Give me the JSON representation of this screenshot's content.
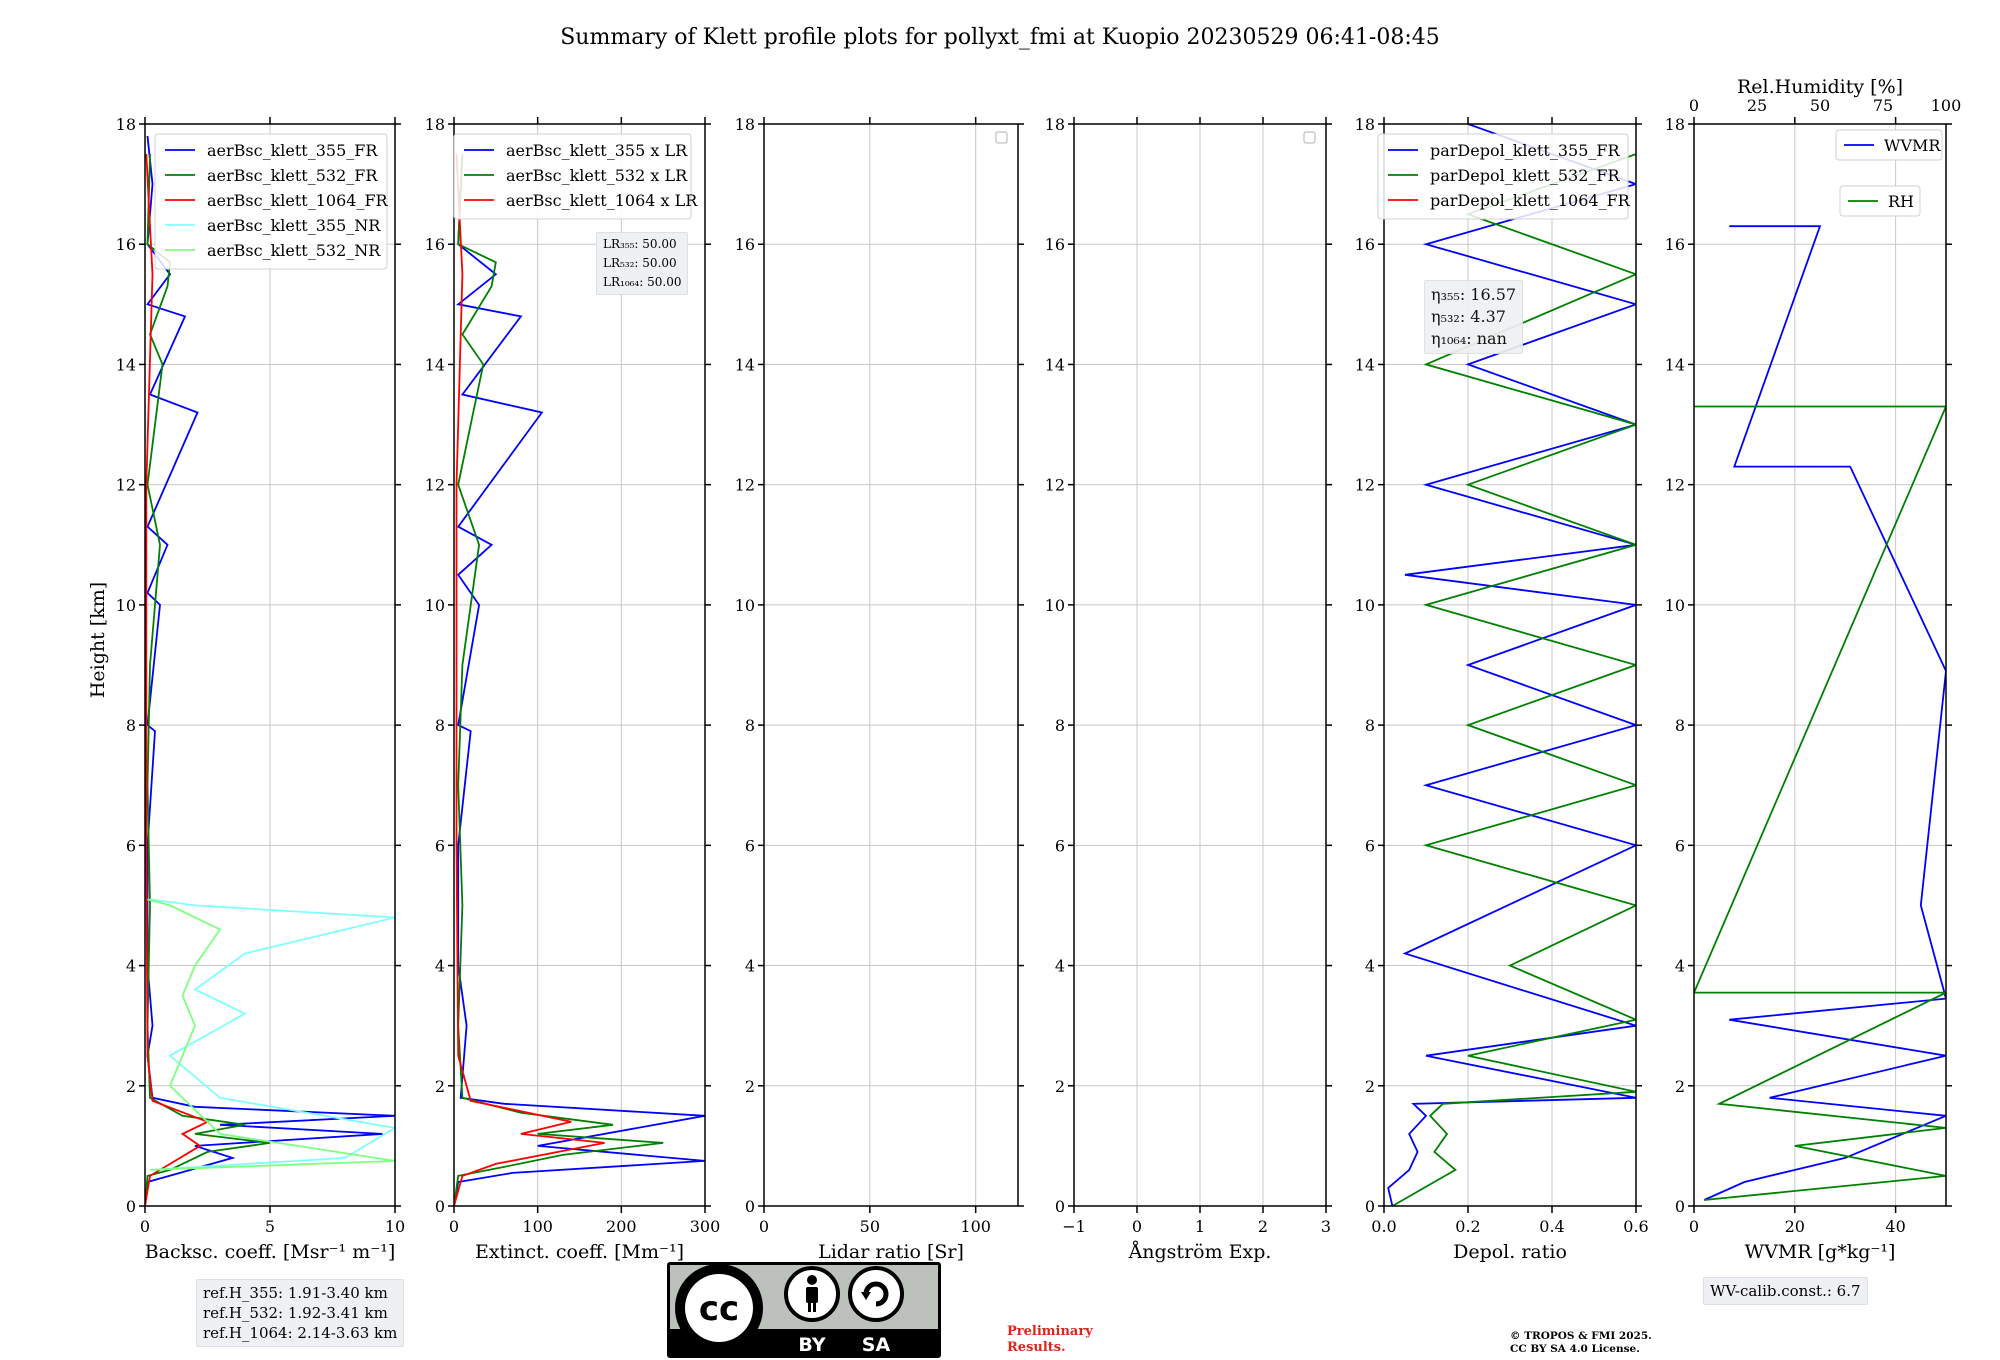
{
  "figure": {
    "title": "Summary of Klett profile plots for pollyxt_fmi at Kuopio 20230529 06:41-08:45",
    "ylabel": "Height [km]"
  },
  "colors": {
    "c355": "#0000ff",
    "c532": "#008000",
    "c1064": "#ff0000",
    "c355nr": "#80ffff",
    "c532nr": "#80ff80",
    "grid": "#c8c8c8"
  },
  "chart_data": [
    {
      "type": "line",
      "xlabel": "Backsc. coeff. [Msr⁻¹ m⁻¹]",
      "ylabel": "Height [km]",
      "xlim": [
        0,
        10
      ],
      "ylim": [
        0,
        18
      ],
      "xticks": [
        "0",
        "5",
        "10"
      ],
      "legend": "upper right",
      "series": [
        {
          "name": "aerBsc_klett_355_FR",
          "color_key": "c355",
          "points": [
            [
              0,
              0
            ],
            [
              0.1,
              0.4
            ],
            [
              1.4,
              0.55
            ],
            [
              3.5,
              0.8
            ],
            [
              2,
              1.0
            ],
            [
              9.5,
              1.2
            ],
            [
              3,
              1.35
            ],
            [
              10,
              1.5
            ],
            [
              2,
              1.65
            ],
            [
              0.3,
              1.8
            ],
            [
              0.1,
              2.5
            ],
            [
              0.3,
              3
            ],
            [
              0.1,
              4
            ],
            [
              0.1,
              6
            ],
            [
              0.4,
              7.9
            ],
            [
              0.1,
              8
            ],
            [
              0.6,
              10
            ],
            [
              0.1,
              10.2
            ],
            [
              0.9,
              11
            ],
            [
              0.1,
              11.3
            ],
            [
              2.1,
              13.2
            ],
            [
              0.2,
              13.5
            ],
            [
              1.6,
              14.8
            ],
            [
              0.1,
              15
            ],
            [
              1,
              15.5
            ],
            [
              0.1,
              16
            ],
            [
              0.3,
              17
            ],
            [
              0.1,
              17.8
            ]
          ]
        },
        {
          "name": "aerBsc_klett_532_FR",
          "color_key": "c532",
          "points": [
            [
              0,
              0
            ],
            [
              0.1,
              0.5
            ],
            [
              1,
              0.6
            ],
            [
              2.5,
              0.9
            ],
            [
              5,
              1.05
            ],
            [
              2,
              1.2
            ],
            [
              4,
              1.35
            ],
            [
              1.5,
              1.5
            ],
            [
              0.2,
              1.8
            ],
            [
              0.1,
              3
            ],
            [
              0.2,
              5
            ],
            [
              0.1,
              7
            ],
            [
              0.2,
              9
            ],
            [
              0.6,
              11
            ],
            [
              0.1,
              12
            ],
            [
              0.4,
              13
            ],
            [
              0.7,
              14
            ],
            [
              0.2,
              14.5
            ],
            [
              0.9,
              15.3
            ],
            [
              1,
              15.7
            ],
            [
              0.1,
              16
            ],
            [
              0.2,
              17.5
            ]
          ]
        },
        {
          "name": "aerBsc_klett_1064_FR",
          "color_key": "c1064",
          "points": [
            [
              0,
              0
            ],
            [
              0.2,
              0.5
            ],
            [
              1,
              0.7
            ],
            [
              2.2,
              1.0
            ],
            [
              1.5,
              1.2
            ],
            [
              2.5,
              1.4
            ],
            [
              0.3,
              1.75
            ],
            [
              0.1,
              2.5
            ],
            [
              0.05,
              6
            ],
            [
              0.05,
              12
            ],
            [
              0.3,
              15.5
            ],
            [
              0.05,
              17.5
            ]
          ]
        },
        {
          "name": "aerBsc_klett_355_NR",
          "color_key": "c355nr",
          "points": [
            [
              0.2,
              0.6
            ],
            [
              8,
              0.8
            ],
            [
              10,
              1.3
            ],
            [
              3,
              1.8
            ],
            [
              1,
              2.5
            ],
            [
              4,
              3.2
            ],
            [
              2,
              3.6
            ],
            [
              4,
              4.2
            ],
            [
              6,
              4.4
            ],
            [
              10,
              4.8
            ],
            [
              2,
              5
            ],
            [
              0.2,
              5.1
            ]
          ]
        },
        {
          "name": "aerBsc_klett_532_NR",
          "color_key": "c532nr",
          "points": [
            [
              0.2,
              0.6
            ],
            [
              10,
              0.75
            ],
            [
              3,
              1.2
            ],
            [
              1,
              2
            ],
            [
              2,
              3
            ],
            [
              1.5,
              3.5
            ],
            [
              2,
              4
            ],
            [
              3,
              4.6
            ],
            [
              1,
              5
            ],
            [
              0.1,
              5.1
            ]
          ]
        }
      ],
      "textbox": [
        "ref.H_355: 1.91-3.40 km",
        "ref.H_532: 1.92-3.41 km",
        "ref.H_1064: 2.14-3.63 km"
      ]
    },
    {
      "type": "line",
      "xlabel": "Extinct. coeff. [Mm⁻¹]",
      "ylabel": "Height [km]",
      "xlim": [
        0,
        300
      ],
      "ylim": [
        0,
        18
      ],
      "xticks": [
        "0",
        "100",
        "200",
        "300"
      ],
      "legend": "upper right",
      "series": [
        {
          "name": "aerBsc_klett_355 x LR",
          "color_key": "c355",
          "points": [
            [
              0,
              0
            ],
            [
              5,
              0.4
            ],
            [
              70,
              0.55
            ],
            [
              300,
              0.75
            ],
            [
              100,
              1.0
            ],
            [
              300,
              1.5
            ],
            [
              60,
              1.7
            ],
            [
              8,
              1.8
            ],
            [
              15,
              3
            ],
            [
              5,
              4
            ],
            [
              5,
              6
            ],
            [
              20,
              7.9
            ],
            [
              5,
              8
            ],
            [
              30,
              10
            ],
            [
              5,
              10.5
            ],
            [
              45,
              11
            ],
            [
              5,
              11.3
            ],
            [
              105,
              13.2
            ],
            [
              10,
              13.5
            ],
            [
              80,
              14.8
            ],
            [
              5,
              15
            ],
            [
              50,
              15.5
            ],
            [
              5,
              16
            ],
            [
              10,
              17.5
            ]
          ]
        },
        {
          "name": "aerBsc_klett_532 x LR",
          "color_key": "c532",
          "points": [
            [
              0,
              0
            ],
            [
              5,
              0.5
            ],
            [
              60,
              0.65
            ],
            [
              130,
              0.85
            ],
            [
              250,
              1.05
            ],
            [
              100,
              1.2
            ],
            [
              190,
              1.35
            ],
            [
              80,
              1.55
            ],
            [
              10,
              1.8
            ],
            [
              5,
              3
            ],
            [
              10,
              5
            ],
            [
              5,
              7
            ],
            [
              10,
              9
            ],
            [
              30,
              11
            ],
            [
              5,
              12
            ],
            [
              20,
              13
            ],
            [
              35,
              14
            ],
            [
              10,
              14.5
            ],
            [
              45,
              15.3
            ],
            [
              50,
              15.7
            ],
            [
              5,
              16
            ],
            [
              10,
              17.5
            ]
          ]
        },
        {
          "name": "aerBsc_klett_1064 x LR",
          "color_key": "c1064",
          "points": [
            [
              0,
              0
            ],
            [
              10,
              0.5
            ],
            [
              50,
              0.7
            ],
            [
              180,
              1.05
            ],
            [
              80,
              1.2
            ],
            [
              140,
              1.4
            ],
            [
              20,
              1.75
            ],
            [
              5,
              2.5
            ],
            [
              3,
              6
            ],
            [
              3,
              12
            ],
            [
              10,
              15.5
            ],
            [
              3,
              17.5
            ]
          ]
        }
      ],
      "textbox": [
        "LR₃₅₅: 50.00",
        "LR₅₃₂: 50.00",
        "LR₁₀₆₄: 50.00"
      ]
    },
    {
      "type": "line",
      "xlabel": "Lidar ratio [Sr]",
      "xlim": [
        0,
        120
      ],
      "ylim": [
        0,
        18
      ],
      "xticks": [
        "0",
        "50",
        "100"
      ],
      "series": []
    },
    {
      "type": "line",
      "xlabel": "Ångström Exp.",
      "xlim": [
        -1,
        3
      ],
      "ylim": [
        0,
        18
      ],
      "xticks": [
        "−1",
        "0",
        "1",
        "2",
        "3"
      ],
      "series": []
    },
    {
      "type": "line",
      "xlabel": "Depol. ratio",
      "xlim": [
        0,
        0.6
      ],
      "ylim": [
        0,
        18
      ],
      "xticks": [
        "0.0",
        "0.2",
        "0.4",
        "0.6"
      ],
      "legend": "upper right",
      "series": [
        {
          "name": "parDepol_klett_355_FR",
          "color_key": "c355",
          "points": [
            [
              0.02,
              0
            ],
            [
              0.01,
              0.3
            ],
            [
              0.06,
              0.6
            ],
            [
              0.08,
              0.9
            ],
            [
              0.06,
              1.2
            ],
            [
              0.1,
              1.5
            ],
            [
              0.07,
              1.7
            ],
            [
              0.6,
              1.8
            ],
            [
              0.1,
              2.5
            ],
            [
              0.6,
              3
            ],
            [
              0.05,
              4.2
            ],
            [
              0.6,
              6
            ],
            [
              0.1,
              7
            ],
            [
              0.6,
              8
            ],
            [
              0.2,
              9
            ],
            [
              0.6,
              10
            ],
            [
              0.05,
              10.5
            ],
            [
              0.6,
              11
            ],
            [
              0.1,
              12
            ],
            [
              0.6,
              13
            ],
            [
              0.2,
              14
            ],
            [
              0.6,
              15
            ],
            [
              0.1,
              16
            ],
            [
              0.6,
              17
            ],
            [
              0.2,
              18
            ]
          ]
        },
        {
          "name": "parDepol_klett_532_FR",
          "color_key": "c532",
          "points": [
            [
              0.02,
              0
            ],
            [
              0.17,
              0.6
            ],
            [
              0.12,
              0.9
            ],
            [
              0.15,
              1.2
            ],
            [
              0.11,
              1.5
            ],
            [
              0.14,
              1.7
            ],
            [
              0.6,
              1.9
            ],
            [
              0.2,
              2.5
            ],
            [
              0.6,
              3.1
            ],
            [
              0.3,
              4
            ],
            [
              0.6,
              5
            ],
            [
              0.1,
              6
            ],
            [
              0.6,
              7
            ],
            [
              0.2,
              8
            ],
            [
              0.6,
              9
            ],
            [
              0.1,
              10
            ],
            [
              0.6,
              11
            ],
            [
              0.2,
              12
            ],
            [
              0.6,
              13
            ],
            [
              0.1,
              14
            ],
            [
              0.6,
              15.5
            ],
            [
              0.2,
              16.5
            ],
            [
              0.6,
              17.5
            ]
          ]
        },
        {
          "name": "parDepol_klett_1064_FR",
          "color_key": "c1064",
          "points": []
        }
      ],
      "textbox": [
        "η₃₅₅: 16.57",
        "η₅₃₂: 4.37",
        "η₁₀₆₄: nan"
      ]
    },
    {
      "type": "line",
      "xlabel": "WVMR [g*kg⁻¹]",
      "x2label": "Rel.Humidity [%]",
      "xlim": [
        0,
        50
      ],
      "x2lim": [
        0,
        100
      ],
      "ylim": [
        0,
        18
      ],
      "xticks": [
        "0",
        "20",
        "40"
      ],
      "x2ticks": [
        "0",
        "25",
        "50",
        "75",
        "100"
      ],
      "series": [
        {
          "name": "WVMR",
          "color_key": "c355",
          "points": [
            [
              2,
              0.1
            ],
            [
              10,
              0.4
            ],
            [
              30,
              0.8
            ],
            [
              50,
              1.5
            ],
            [
              15,
              1.8
            ],
            [
              50,
              2.5
            ],
            [
              7,
              3.1
            ],
            [
              50,
              3.45
            ],
            [
              45,
              5
            ],
            [
              50,
              8.9
            ],
            [
              31,
              12.3
            ],
            [
              8,
              12.3
            ],
            [
              25,
              16.3
            ],
            [
              7,
              16.3
            ]
          ]
        },
        {
          "name": "RH",
          "color_key": "c532",
          "points": [
            [
              2,
              0.1
            ],
            [
              50,
              0.5
            ],
            [
              20,
              1.0
            ],
            [
              50,
              1.3
            ],
            [
              5,
              1.7
            ],
            [
              50,
              3.55
            ],
            [
              0,
              3.55
            ],
            [
              50,
              13.3
            ],
            [
              0,
              13.3
            ]
          ]
        }
      ],
      "textbox": [
        "WV-calib.const.: 6.7"
      ]
    }
  ],
  "footer": {
    "license_badge_by": "BY",
    "license_badge_sa": "SA",
    "preliminary_line1": "Preliminary",
    "preliminary_line2": "Results.",
    "copyright_line1": "© TROPOS & FMI 2025.",
    "copyright_line2": "CC BY SA 4.0 License."
  }
}
